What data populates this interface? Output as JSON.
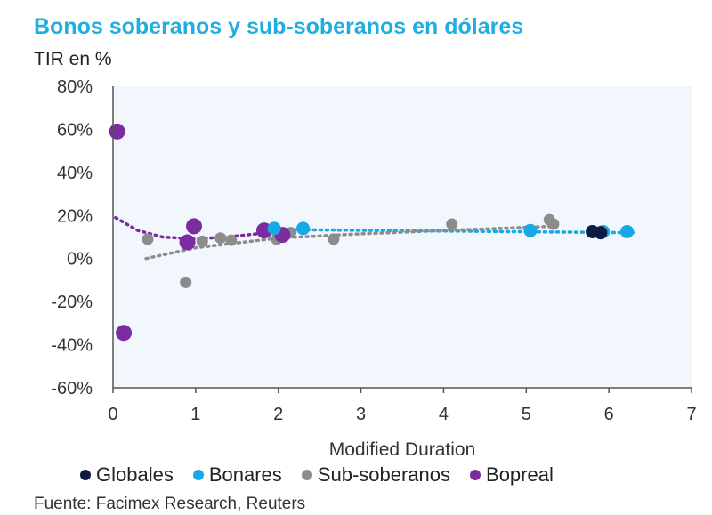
{
  "chart_data": {
    "type": "scatter",
    "title": "Bonos soberanos y sub-soberanos en dólares",
    "ylabel": "TIR en %",
    "xlabel": "Modified Duration",
    "xlim": [
      0,
      7
    ],
    "ylim": [
      -60,
      80
    ],
    "xticks": [
      0,
      1,
      2,
      3,
      4,
      5,
      6,
      7
    ],
    "yticks": [
      80,
      60,
      40,
      20,
      0,
      -20,
      -40,
      -60
    ],
    "ytick_labels": [
      "80%",
      "60%",
      "40%",
      "20%",
      "0%",
      "-20%",
      "-40%",
      "-60%"
    ],
    "source": "Fuente: Facimex Research, Reuters",
    "series": [
      {
        "name": "Globales",
        "color": "#0d1b45",
        "points": [
          [
            5.8,
            12.5
          ],
          [
            5.9,
            12.0
          ]
        ]
      },
      {
        "name": "Bonares",
        "color": "#17a8e6",
        "points": [
          [
            1.95,
            14.0
          ],
          [
            2.3,
            14.0
          ],
          [
            5.05,
            13.0
          ],
          [
            5.93,
            12.5
          ],
          [
            6.22,
            12.5
          ]
        ]
      },
      {
        "name": "Sub-soberanos",
        "color": "#8c8c8c",
        "points": [
          [
            0.42,
            9.0
          ],
          [
            0.88,
            -11.0
          ],
          [
            1.08,
            8.0
          ],
          [
            1.3,
            9.5
          ],
          [
            1.43,
            8.5
          ],
          [
            1.98,
            9.0
          ],
          [
            2.15,
            12.0
          ],
          [
            2.67,
            9.0
          ],
          [
            4.1,
            16.0
          ],
          [
            5.28,
            18.0
          ],
          [
            5.33,
            16.0
          ]
        ]
      },
      {
        "name": "Bopreal",
        "color": "#7a2d9e",
        "points": [
          [
            0.05,
            59.0
          ],
          [
            0.13,
            -34.5
          ],
          [
            0.9,
            7.5
          ],
          [
            0.98,
            15.0
          ],
          [
            1.83,
            13.0
          ],
          [
            2.05,
            11.0
          ]
        ]
      }
    ],
    "trendlines": [
      {
        "series": "Bonares",
        "color": "#17a8e6",
        "points": [
          [
            1.9,
            13.5
          ],
          [
            6.3,
            12.0
          ]
        ]
      },
      {
        "series": "Sub-soberanos",
        "color": "#8c8c8c",
        "points": [
          [
            0.4,
            0.0
          ],
          [
            1.0,
            5.0
          ],
          [
            2.0,
            9.5
          ],
          [
            3.0,
            11.5
          ],
          [
            4.0,
            13.0
          ],
          [
            5.35,
            15.0
          ]
        ]
      },
      {
        "series": "Bopreal",
        "color": "#7a2d9e",
        "points": [
          [
            0.03,
            19.0
          ],
          [
            0.3,
            13.0
          ],
          [
            0.6,
            10.0
          ],
          [
            1.0,
            9.0
          ],
          [
            1.5,
            10.5
          ],
          [
            2.0,
            12.5
          ],
          [
            2.2,
            13.0
          ]
        ]
      }
    ]
  },
  "legend": [
    {
      "label": "Globales",
      "color": "#0d1b45"
    },
    {
      "label": "Bonares",
      "color": "#17a8e6"
    },
    {
      "label": "Sub-soberanos",
      "color": "#8c8c8c"
    },
    {
      "label": "Bopreal",
      "color": "#7a2d9e"
    }
  ]
}
